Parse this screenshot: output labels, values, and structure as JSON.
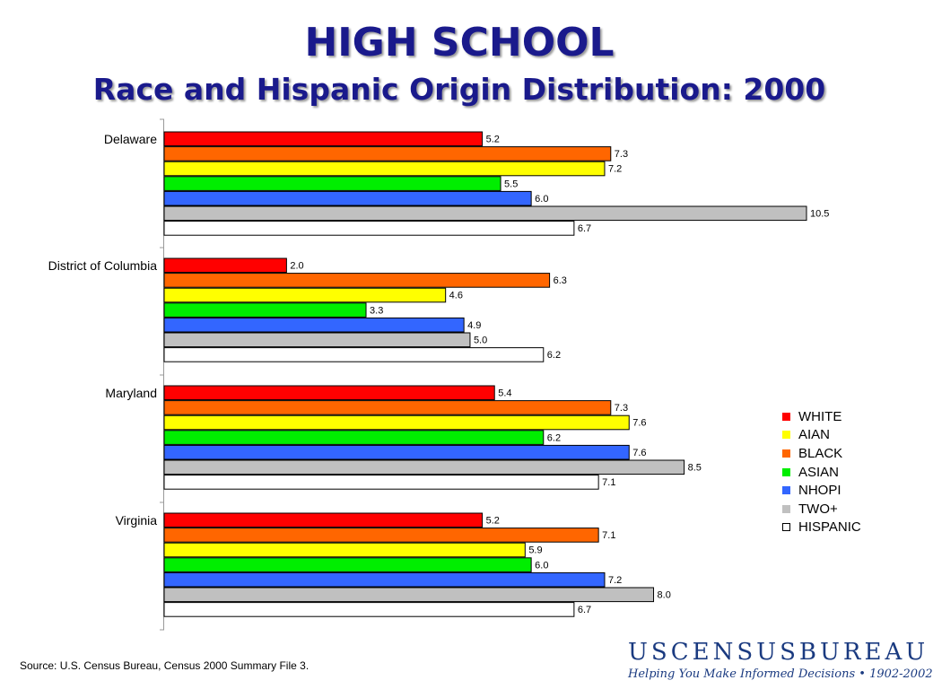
{
  "title": "HIGH SCHOOL",
  "subtitle": "Race and Hispanic Origin Distribution:  2000",
  "source": "Source:  U.S. Census Bureau, Census 2000 Summary File 3.",
  "logo": {
    "name": "USCENSUSBUREAU",
    "tagline": "Helping You Make Informed Decisions • 1902-2002"
  },
  "legend": [
    {
      "label": "WHITE",
      "color": "#ff0000"
    },
    {
      "label": "AIAN",
      "color": "#ffff00"
    },
    {
      "label": "BLACK",
      "color": "#ff6600"
    },
    {
      "label": "ASIAN",
      "color": "#00ee00"
    },
    {
      "label": "NHOPI",
      "color": "#3366ff"
    },
    {
      "label": "TWO+",
      "color": "#c0c0c0"
    },
    {
      "label": "HISPANIC",
      "color": "#ffffff"
    }
  ],
  "chart_data": {
    "type": "bar",
    "orientation": "horizontal",
    "categories": [
      "Delaware",
      "District of Columbia",
      "Maryland",
      "Virginia"
    ],
    "bar_order": [
      "WHITE",
      "BLACK",
      "AIAN",
      "ASIAN",
      "NHOPI",
      "TWO+",
      "HISPANIC"
    ],
    "series": [
      {
        "name": "WHITE",
        "color": "#ff0000",
        "values": [
          5.2,
          2.0,
          5.4,
          5.2
        ]
      },
      {
        "name": "BLACK",
        "color": "#ff6600",
        "values": [
          7.3,
          6.3,
          7.3,
          7.1
        ]
      },
      {
        "name": "AIAN",
        "color": "#ffff00",
        "values": [
          7.2,
          4.6,
          7.6,
          5.9
        ]
      },
      {
        "name": "ASIAN",
        "color": "#00ee00",
        "values": [
          5.5,
          3.3,
          6.2,
          6.0
        ]
      },
      {
        "name": "NHOPI",
        "color": "#3366ff",
        "values": [
          6.0,
          4.9,
          7.6,
          7.2
        ]
      },
      {
        "name": "TWO+",
        "color": "#c0c0c0",
        "values": [
          10.5,
          5.0,
          8.5,
          8.0
        ]
      },
      {
        "name": "HISPANIC",
        "color": "#ffffff",
        "values": [
          6.7,
          6.2,
          7.1,
          6.7
        ]
      }
    ],
    "xlim": [
      0,
      10.5
    ],
    "grid": false,
    "legend_position": "right"
  }
}
